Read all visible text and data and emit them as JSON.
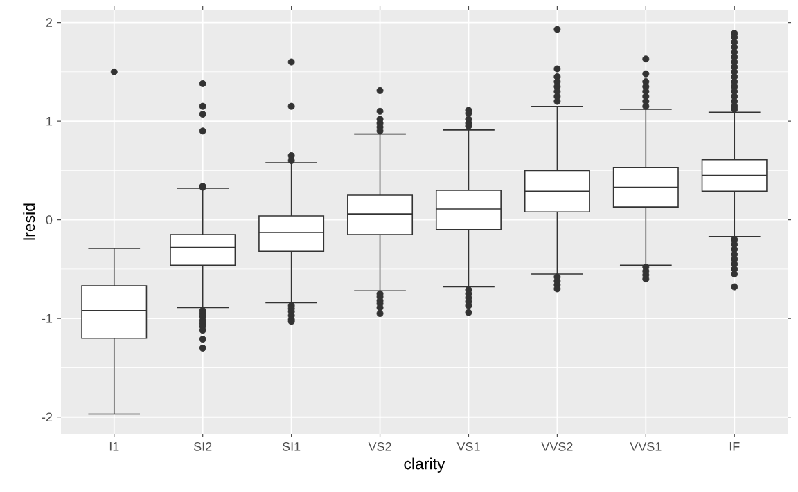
{
  "chart_data": {
    "type": "box",
    "xlabel": "clarity",
    "ylabel": "lresid",
    "categories": [
      "I1",
      "SI2",
      "SI1",
      "VS2",
      "VS1",
      "VVS2",
      "VVS1",
      "IF"
    ],
    "boxes": [
      {
        "low": -1.97,
        "q1": -1.2,
        "median": -0.92,
        "q3": -0.67,
        "high": -0.29,
        "outliers": [
          1.5
        ]
      },
      {
        "low": -0.89,
        "q1": -0.46,
        "median": -0.28,
        "q3": -0.15,
        "high": 0.32,
        "outliers": [
          1.38,
          1.15,
          1.07,
          0.9,
          0.34,
          0.33,
          -0.92,
          -0.95,
          -0.98,
          -1.02,
          -1.05,
          -1.08,
          -1.12,
          -1.21,
          -1.3
        ]
      },
      {
        "low": -0.84,
        "q1": -0.32,
        "median": -0.13,
        "q3": 0.04,
        "high": 0.58,
        "outliers": [
          1.6,
          1.15,
          0.65,
          0.6,
          -0.87,
          -0.9,
          -0.93,
          -0.97,
          -1.01,
          -1.03
        ]
      },
      {
        "low": -0.72,
        "q1": -0.15,
        "median": 0.06,
        "q3": 0.25,
        "high": 0.87,
        "outliers": [
          1.31,
          1.1,
          1.02,
          0.98,
          0.94,
          0.9,
          -0.75,
          -0.78,
          -0.82,
          -0.85,
          -0.89,
          -0.95
        ]
      },
      {
        "low": -0.68,
        "q1": -0.1,
        "median": 0.11,
        "q3": 0.3,
        "high": 0.91,
        "outliers": [
          1.11,
          1.08,
          1.02,
          0.98,
          0.95,
          -0.71,
          -0.75,
          -0.79,
          -0.83,
          -0.87,
          -0.94
        ]
      },
      {
        "low": -0.55,
        "q1": 0.08,
        "median": 0.29,
        "q3": 0.5,
        "high": 1.15,
        "outliers": [
          1.93,
          1.53,
          1.45,
          1.4,
          1.35,
          1.3,
          1.25,
          1.2,
          -0.58,
          -0.62,
          -0.66,
          -0.7
        ]
      },
      {
        "low": -0.46,
        "q1": 0.13,
        "median": 0.33,
        "q3": 0.53,
        "high": 1.12,
        "outliers": [
          1.63,
          1.48,
          1.4,
          1.35,
          1.3,
          1.25,
          1.2,
          1.15,
          -0.48,
          -0.52,
          -0.56,
          -0.6
        ]
      },
      {
        "low": -0.17,
        "q1": 0.29,
        "median": 0.45,
        "q3": 0.61,
        "high": 1.09,
        "outliers": [
          1.89,
          1.85,
          1.8,
          1.75,
          1.7,
          1.65,
          1.6,
          1.55,
          1.5,
          1.45,
          1.4,
          1.35,
          1.3,
          1.25,
          1.2,
          1.15,
          1.12,
          -0.2,
          -0.25,
          -0.3,
          -0.35,
          -0.4,
          -0.45,
          -0.5,
          -0.55,
          -0.68
        ]
      }
    ],
    "ylim": [
      -2.17,
      2.13
    ],
    "yticks": [
      -2,
      -1,
      0,
      1,
      2
    ],
    "grid": true
  }
}
